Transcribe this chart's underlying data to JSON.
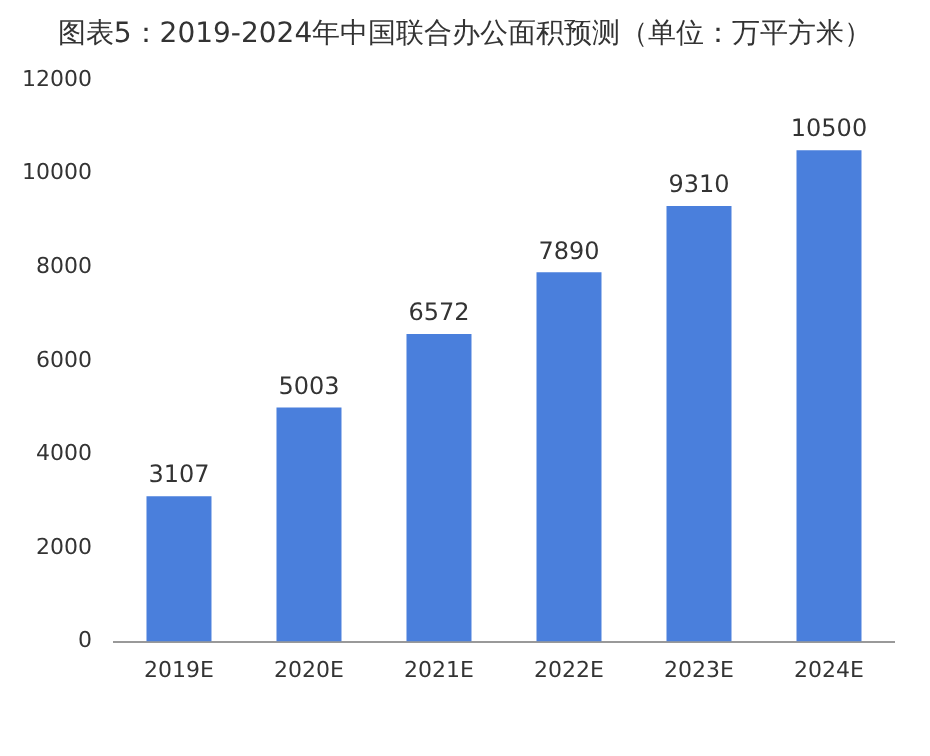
{
  "chart_data": {
    "type": "bar",
    "title": "图表5：2019-2024年中国联合办公面积预测（单位：万平方米）",
    "categories": [
      "2019E",
      "2020E",
      "2021E",
      "2022E",
      "2023E",
      "2024E"
    ],
    "values": [
      3107,
      5003,
      6572,
      7890,
      9310,
      10500
    ],
    "color": "#4a7fdc",
    "ylim": [
      0,
      12000
    ],
    "yticks": [
      0,
      2000,
      4000,
      6000,
      8000,
      10000,
      12000
    ],
    "grid": false,
    "legend": false,
    "data_labels": true
  }
}
